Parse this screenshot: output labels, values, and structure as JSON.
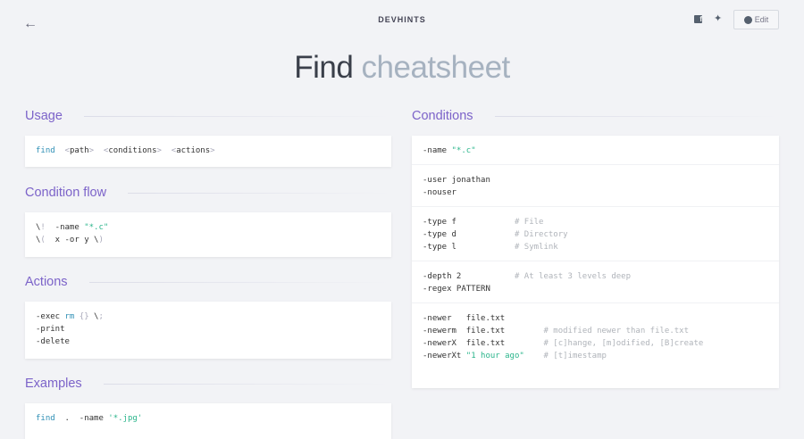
{
  "header": {
    "brand": "DEVHINTS",
    "edit_label": "Edit",
    "back_icon": "arrow-left-icon"
  },
  "title": {
    "main": "Find",
    "light": "cheatsheet"
  },
  "colors": {
    "accent": "#7c63c9",
    "keyword": "#2e8fb5",
    "string": "#2ab58b",
    "comment": "#b0b4ba"
  },
  "sections": {
    "usage": {
      "heading": "Usage",
      "blocks": [
        [
          [
            [
              "kw",
              "find"
            ],
            [
              "",
              "  "
            ],
            [
              "pun",
              "<"
            ],
            [
              "",
              "path"
            ],
            [
              "pun",
              ">"
            ],
            [
              "",
              "  "
            ],
            [
              "pun",
              "<"
            ],
            [
              "",
              "conditions"
            ],
            [
              "pun",
              ">"
            ],
            [
              "",
              "  "
            ],
            [
              "pun",
              "<"
            ],
            [
              "",
              "actions"
            ],
            [
              "pun",
              ">"
            ]
          ]
        ]
      ]
    },
    "flow": {
      "heading": "Condition flow",
      "blocks": [
        [
          [
            [
              "",
              "\\"
            ],
            [
              "pun",
              "!"
            ],
            [
              "",
              "",
              " "
            ],
            [
              "",
              "  -name "
            ],
            [
              "str",
              "\"*.c\""
            ]
          ],
          [
            [
              "",
              "\\"
            ],
            [
              "pun",
              "("
            ],
            [
              "",
              "  x -or y \\"
            ],
            [
              "pun",
              ")"
            ]
          ]
        ]
      ]
    },
    "actions": {
      "heading": "Actions",
      "blocks": [
        [
          [
            [
              "",
              "-exec "
            ],
            [
              "kw",
              "rm"
            ],
            [
              "pun",
              " {} "
            ],
            [
              "",
              "\\"
            ],
            [
              "pun",
              ";"
            ]
          ],
          [
            [
              "",
              "-print"
            ]
          ],
          [
            [
              "",
              "-delete"
            ]
          ]
        ]
      ]
    },
    "examples": {
      "heading": "Examples",
      "blocks": [
        [
          [
            [
              "kw",
              "find"
            ],
            [
              "",
              "  .  -name "
            ],
            [
              "str",
              "'*.jpg'"
            ]
          ]
        ]
      ]
    },
    "conditions": {
      "heading": "Conditions",
      "blocks": [
        [
          [
            [
              "",
              "-name "
            ],
            [
              "str",
              "\"*.c\""
            ]
          ]
        ],
        [
          [
            [
              "",
              "-user jonathan"
            ]
          ],
          [
            [
              "",
              "-nouser"
            ]
          ]
        ],
        [
          [
            [
              "",
              "-type f            "
            ],
            [
              "cm",
              "# File"
            ]
          ],
          [
            [
              "",
              "-type d            "
            ],
            [
              "cm",
              "# Directory"
            ]
          ],
          [
            [
              "",
              "-type l            "
            ],
            [
              "cm",
              "# Symlink"
            ]
          ]
        ],
        [
          [
            [
              "",
              "-depth 2           "
            ],
            [
              "cm",
              "# At least 3 levels deep"
            ]
          ],
          [
            [
              "",
              "-regex PATTERN"
            ]
          ]
        ],
        [
          [
            [
              "",
              "-newer   file.txt"
            ]
          ],
          [
            [
              "",
              "-newerm  file.txt        "
            ],
            [
              "cm",
              "# modified newer than file.txt"
            ]
          ],
          [
            [
              "",
              "-newerX  file.txt        "
            ],
            [
              "cm",
              "# [c]hange, [m]odified, [B]create"
            ]
          ],
          [
            [
              "",
              "-newerXt "
            ],
            [
              "str",
              "\"1 hour ago\""
            ],
            [
              "",
              "    "
            ],
            [
              "cm",
              "# [t]imestamp"
            ]
          ]
        ]
      ]
    }
  }
}
